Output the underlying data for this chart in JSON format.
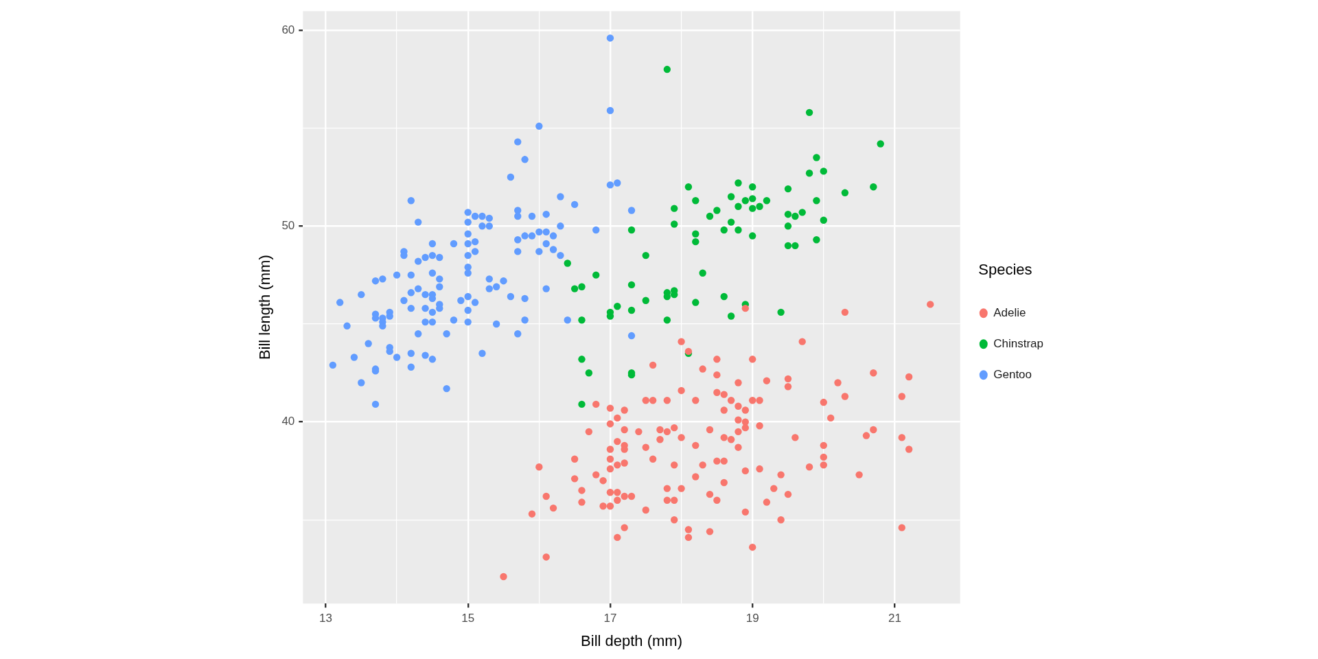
{
  "chart_data": {
    "type": "scatter",
    "xlabel": "Bill depth (mm)",
    "ylabel": "Bill length (mm)",
    "legend_title": "Species",
    "legend": "right",
    "grid": true,
    "marker": "circle",
    "xlim": [
      12.68,
      21.92
    ],
    "ylim": [
      30.725,
      60.975
    ],
    "xticks": [
      13,
      {
        "value": 14,
        "label": null
      },
      15,
      {
        "value": 16,
        "label": null
      },
      17,
      {
        "value": 18,
        "label": null
      },
      19,
      {
        "value": 20,
        "label": null
      },
      21
    ],
    "yticks": [
      {
        "value": 35,
        "label": null
      },
      40,
      {
        "value": 45,
        "label": null
      },
      50,
      {
        "value": 55,
        "label": null
      },
      60
    ],
    "series": [
      {
        "name": "Adelie",
        "color": "#f8766d",
        "x": [
          15.5,
          15.9,
          16.0,
          16.1,
          16.1,
          16.2,
          16.5,
          16.5,
          16.6,
          16.6,
          16.7,
          16.8,
          16.8,
          16.9,
          16.9,
          17.0,
          17.0,
          17.0,
          17.0,
          17.0,
          17.0,
          17.0,
          17.1,
          17.1,
          17.1,
          17.1,
          17.1,
          17.1,
          17.2,
          17.2,
          17.2,
          17.2,
          17.2,
          17.2,
          17.2,
          17.3,
          17.4,
          17.5,
          17.5,
          17.5,
          17.6,
          17.6,
          17.6,
          17.7,
          17.7,
          17.8,
          17.8,
          17.8,
          17.8,
          17.9,
          17.9,
          17.9,
          17.9,
          18.0,
          18.0,
          18.0,
          18.0,
          18.1,
          18.1,
          18.1,
          18.2,
          18.2,
          18.2,
          18.3,
          18.3,
          18.4,
          18.4,
          18.4,
          18.5,
          18.5,
          18.5,
          18.5,
          18.5,
          18.6,
          18.6,
          18.6,
          18.6,
          18.6,
          18.7,
          18.7,
          18.8,
          18.8,
          18.8,
          18.8,
          18.8,
          18.9,
          18.9,
          18.9,
          18.9,
          18.9,
          18.9,
          19.0,
          19.0,
          19.0,
          19.1,
          19.1,
          19.1,
          19.2,
          19.2,
          19.3,
          19.4,
          19.4,
          19.5,
          19.5,
          19.5,
          19.6,
          19.7,
          19.8,
          20.0,
          20.0,
          20.0,
          20.0,
          20.1,
          20.2,
          20.3,
          20.3,
          20.5,
          20.6,
          20.7,
          20.7,
          21.1,
          21.1,
          21.1,
          21.2,
          21.2,
          21.5
        ],
        "values": [
          32.1,
          35.3,
          37.7,
          36.2,
          33.1,
          35.6,
          38.1,
          37.1,
          36.5,
          35.9,
          39.5,
          40.9,
          37.3,
          37.0,
          35.7,
          40.7,
          39.9,
          38.6,
          38.1,
          37.6,
          35.7,
          36.4,
          40.2,
          39.0,
          37.8,
          36.4,
          36.0,
          34.1,
          40.6,
          39.6,
          38.8,
          38.6,
          37.9,
          36.2,
          34.6,
          36.2,
          39.5,
          38.7,
          35.5,
          41.1,
          42.9,
          41.1,
          38.1,
          39.6,
          39.1,
          41.1,
          39.5,
          36.6,
          36.0,
          39.7,
          37.8,
          36.0,
          35.0,
          44.1,
          41.6,
          39.2,
          36.6,
          43.6,
          34.5,
          34.1,
          41.1,
          38.8,
          37.2,
          42.7,
          37.8,
          39.6,
          36.3,
          34.4,
          43.2,
          42.4,
          41.5,
          38.0,
          36.0,
          41.4,
          40.6,
          39.2,
          38.0,
          36.9,
          41.1,
          39.1,
          42.0,
          40.8,
          40.1,
          39.5,
          38.7,
          45.8,
          40.6,
          40.0,
          39.7,
          37.5,
          35.4,
          43.2,
          41.1,
          33.6,
          41.1,
          39.8,
          37.6,
          42.1,
          35.9,
          36.6,
          37.3,
          35.0,
          41.8,
          42.2,
          36.3,
          39.2,
          44.1,
          37.7,
          41.0,
          38.8,
          38.2,
          37.8,
          40.2,
          42.0,
          45.6,
          41.3,
          37.3,
          39.3,
          42.5,
          39.6,
          41.3,
          39.2,
          34.6,
          42.3,
          38.6,
          46.0
        ]
      },
      {
        "name": "Chinstrap",
        "color": "#00ba38",
        "x": [
          16.4,
          16.5,
          16.6,
          16.6,
          16.6,
          16.6,
          16.7,
          16.8,
          17.0,
          17.0,
          17.1,
          17.3,
          17.3,
          17.3,
          17.3,
          17.3,
          17.5,
          17.5,
          17.8,
          17.8,
          17.8,
          17.8,
          17.9,
          17.9,
          17.9,
          17.9,
          18.1,
          18.1,
          18.2,
          18.2,
          18.2,
          18.2,
          18.3,
          18.4,
          18.5,
          18.6,
          18.6,
          18.7,
          18.7,
          18.7,
          18.8,
          18.8,
          18.8,
          18.9,
          18.9,
          19.0,
          19.0,
          19.0,
          19.0,
          19.1,
          19.2,
          19.5,
          19.4,
          19.5,
          19.5,
          19.5,
          19.6,
          19.6,
          19.7,
          19.8,
          19.8,
          19.9,
          19.9,
          19.9,
          20.0,
          20.0,
          20.3,
          20.7,
          20.8
        ],
        "values": [
          48.1,
          46.8,
          46.9,
          45.2,
          43.2,
          40.9,
          42.5,
          47.5,
          45.6,
          45.4,
          45.9,
          49.8,
          47.0,
          45.7,
          42.5,
          42.4,
          46.2,
          48.5,
          58.0,
          46.6,
          46.4,
          45.2,
          50.9,
          50.1,
          46.7,
          46.5,
          52.0,
          43.5,
          51.3,
          49.6,
          49.2,
          46.1,
          47.6,
          50.5,
          50.8,
          49.8,
          46.4,
          51.5,
          50.2,
          45.4,
          52.2,
          51.0,
          49.8,
          51.3,
          46.0,
          52.0,
          51.4,
          50.9,
          49.5,
          51.0,
          51.3,
          50.6,
          45.6,
          51.9,
          50.0,
          49.0,
          50.5,
          49.0,
          50.7,
          55.8,
          52.7,
          53.5,
          51.3,
          49.3,
          52.8,
          50.3,
          51.7,
          52.0,
          54.2
        ]
      },
      {
        "name": "Gentoo",
        "color": "#619cff",
        "x": [
          13.1,
          13.2,
          13.3,
          13.4,
          13.5,
          13.5,
          13.6,
          13.7,
          13.7,
          13.7,
          13.7,
          13.7,
          13.7,
          13.8,
          13.8,
          13.8,
          13.8,
          13.9,
          13.9,
          13.9,
          13.9,
          14.0,
          14.0,
          14.1,
          14.1,
          14.1,
          14.2,
          14.2,
          14.2,
          14.2,
          14.2,
          14.2,
          14.3,
          14.3,
          14.3,
          14.3,
          14.4,
          14.4,
          14.4,
          14.4,
          14.4,
          14.5,
          14.5,
          14.5,
          14.5,
          14.5,
          14.5,
          14.5,
          14.5,
          14.6,
          14.6,
          14.6,
          14.6,
          14.6,
          14.7,
          14.7,
          14.8,
          14.8,
          14.9,
          15.0,
          15.0,
          15.0,
          15.0,
          15.0,
          15.0,
          15.0,
          15.0,
          15.0,
          15.0,
          15.1,
          15.1,
          15.1,
          15.1,
          15.2,
          15.2,
          15.2,
          15.3,
          15.3,
          15.3,
          15.3,
          15.4,
          15.4,
          15.5,
          15.6,
          15.6,
          15.7,
          15.7,
          15.7,
          15.7,
          15.7,
          15.7,
          15.8,
          15.8,
          15.8,
          15.8,
          15.9,
          15.9,
          16.0,
          16.0,
          16.0,
          16.1,
          16.1,
          16.1,
          16.1,
          16.2,
          16.2,
          16.3,
          16.3,
          16.3,
          16.4,
          16.5,
          16.8,
          17.0,
          17.0,
          17.0,
          17.1,
          17.3,
          17.3
        ],
        "values": [
          42.9,
          46.1,
          44.9,
          43.3,
          46.5,
          42.0,
          44.0,
          47.2,
          45.5,
          45.3,
          42.7,
          42.6,
          40.9,
          47.3,
          45.3,
          45.1,
          44.9,
          45.6,
          45.4,
          43.8,
          43.6,
          47.5,
          43.3,
          48.7,
          48.5,
          46.2,
          51.3,
          47.5,
          46.6,
          45.8,
          43.5,
          42.8,
          50.2,
          48.2,
          46.8,
          44.5,
          48.4,
          46.5,
          45.8,
          45.1,
          43.4,
          49.1,
          48.5,
          47.6,
          46.5,
          46.3,
          45.6,
          45.1,
          43.2,
          48.4,
          47.3,
          46.9,
          46.0,
          45.8,
          44.5,
          41.7,
          49.1,
          45.2,
          46.2,
          50.7,
          50.2,
          49.6,
          49.1,
          48.5,
          47.9,
          47.6,
          46.4,
          45.7,
          45.1,
          50.5,
          49.2,
          48.7,
          46.1,
          43.5,
          50.5,
          50.0,
          50.4,
          50.0,
          47.3,
          46.8,
          46.9,
          45.0,
          47.2,
          52.5,
          46.4,
          54.3,
          50.8,
          50.5,
          49.3,
          48.7,
          44.5,
          53.4,
          49.5,
          46.3,
          45.2,
          50.5,
          49.5,
          55.1,
          49.7,
          48.7,
          50.6,
          49.7,
          49.1,
          46.8,
          49.5,
          48.8,
          51.5,
          50.0,
          48.5,
          45.2,
          51.1,
          49.8,
          59.6,
          55.9,
          52.1,
          52.2,
          50.8,
          44.4
        ]
      }
    ]
  }
}
